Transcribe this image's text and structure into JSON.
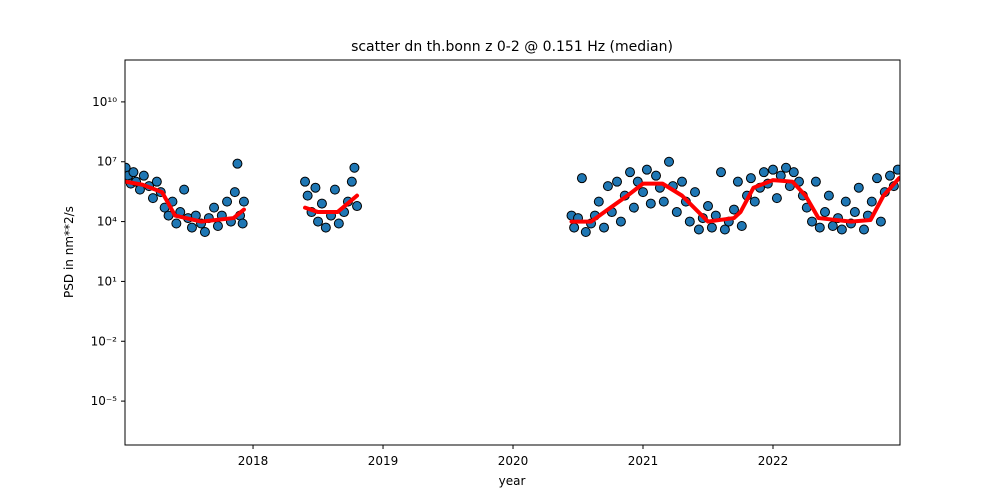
{
  "chart_data": {
    "type": "scatter",
    "title": "scatter dn th.bonn z 0-2 @ 0.151 Hz (median)",
    "xlabel": "year",
    "ylabel": "PSD in nm**2/s",
    "xlim": [
      2017.015,
      2022.977
    ],
    "xticks": [
      2018,
      2019,
      2020,
      2021,
      2022
    ],
    "ylim": [
      6.3e-08,
      1260000000000.0
    ],
    "yscale": "log",
    "yticks": [
      {
        "value": 1e-05,
        "label": "10⁻⁵"
      },
      {
        "value": 0.01,
        "label": "10⁻²"
      },
      {
        "value": 10,
        "label": "10¹"
      },
      {
        "value": 10000,
        "label": "10⁴"
      },
      {
        "value": 10000000,
        "label": "10⁷"
      },
      {
        "value": 10000000000,
        "label": "10¹⁰"
      }
    ],
    "grid": false,
    "series": [
      {
        "kind": "markers",
        "color": "#1f77b4",
        "edgecolor": "#000000",
        "x": [
          2017.02,
          2017.04,
          2017.06,
          2017.08,
          2017.1,
          2017.13,
          2017.16,
          2017.2,
          2017.23,
          2017.26,
          2017.29,
          2017.32,
          2017.35,
          2017.38,
          2017.41,
          2017.44,
          2017.47,
          2017.5,
          2017.53,
          2017.56,
          2017.6,
          2017.63,
          2017.66,
          2017.7,
          2017.73,
          2017.76,
          2017.8,
          2017.83,
          2017.86,
          2017.88,
          2017.9,
          2017.92,
          2017.93,
          2018.4,
          2018.42,
          2018.45,
          2018.48,
          2018.5,
          2018.53,
          2018.56,
          2018.6,
          2018.63,
          2018.66,
          2018.7,
          2018.73,
          2018.76,
          2018.78,
          2018.8,
          2020.45,
          2020.47,
          2020.5,
          2020.53,
          2020.56,
          2020.6,
          2020.63,
          2020.66,
          2020.7,
          2020.73,
          2020.76,
          2020.8,
          2020.83,
          2020.86,
          2020.9,
          2020.93,
          2020.96,
          2021.0,
          2021.03,
          2021.06,
          2021.1,
          2021.13,
          2021.16,
          2021.2,
          2021.23,
          2021.26,
          2021.3,
          2021.33,
          2021.36,
          2021.4,
          2021.43,
          2021.46,
          2021.5,
          2021.53,
          2021.56,
          2021.6,
          2021.63,
          2021.66,
          2021.7,
          2021.73,
          2021.76,
          2021.8,
          2021.83,
          2021.86,
          2021.9,
          2021.93,
          2021.96,
          2022.0,
          2022.03,
          2022.06,
          2022.1,
          2022.13,
          2022.16,
          2022.2,
          2022.23,
          2022.26,
          2022.3,
          2022.33,
          2022.36,
          2022.4,
          2022.43,
          2022.46,
          2022.5,
          2022.53,
          2022.56,
          2022.6,
          2022.63,
          2022.66,
          2022.7,
          2022.73,
          2022.76,
          2022.8,
          2022.83,
          2022.86,
          2022.9,
          2022.93,
          2022.96
        ],
        "values": [
          5000000.0,
          2000000.0,
          800000.0,
          3000000.0,
          1000000.0,
          400000.0,
          2000000.0,
          600000.0,
          150000.0,
          1000000.0,
          300000.0,
          50000.0,
          20000.0,
          100000.0,
          8000.0,
          30000.0,
          400000.0,
          15000.0,
          5000.0,
          20000.0,
          8000.0,
          3000.0,
          15000.0,
          50000.0,
          6000.0,
          20000.0,
          100000.0,
          10000.0,
          300000.0,
          8000000.0,
          20000.0,
          8000.0,
          100000.0,
          1000000.0,
          200000.0,
          30000.0,
          500000.0,
          10000.0,
          80000.0,
          5000.0,
          20000.0,
          400000.0,
          8000.0,
          30000.0,
          100000.0,
          1000000.0,
          5000000.0,
          60000.0,
          20000.0,
          5000.0,
          15000.0,
          1500000.0,
          3000.0,
          8000.0,
          20000.0,
          100000.0,
          5000.0,
          600000.0,
          30000.0,
          1000000.0,
          10000.0,
          200000.0,
          3000000.0,
          50000.0,
          1000000.0,
          300000.0,
          4000000.0,
          80000.0,
          2000000.0,
          500000.0,
          100000.0,
          10000000.0,
          600000.0,
          30000.0,
          1000000.0,
          100000.0,
          10000.0,
          300000.0,
          4000.0,
          15000.0,
          60000.0,
          5000.0,
          20000.0,
          3000000.0,
          4000.0,
          10000.0,
          40000.0,
          1000000.0,
          6000.0,
          200000.0,
          1500000.0,
          100000.0,
          500000.0,
          3000000.0,
          800000.0,
          4000000.0,
          150000.0,
          2000000.0,
          5000000.0,
          600000.0,
          3000000.0,
          1000000.0,
          200000.0,
          50000.0,
          10000.0,
          1000000.0,
          5000.0,
          30000.0,
          200000.0,
          6000.0,
          15000.0,
          4000.0,
          100000.0,
          8000.0,
          30000.0,
          500000.0,
          4000.0,
          20000.0,
          100000.0,
          1500000.0,
          10000.0,
          300000.0,
          2000000.0,
          600000.0,
          4000000.0
        ]
      },
      {
        "kind": "line",
        "color": "#ff0000",
        "x": [
          2017.02,
          2017.15,
          2017.3,
          2017.4,
          2017.6,
          2017.85,
          2017.93,
          2018.1,
          2018.4,
          2018.5,
          2018.65,
          2018.8,
          2019.5,
          2020.45,
          2020.6,
          2020.75,
          2020.9,
          2021.0,
          2021.15,
          2021.3,
          2021.5,
          2021.7,
          2021.75,
          2021.85,
          2022.0,
          2022.15,
          2022.25,
          2022.35,
          2022.6,
          2022.75,
          2022.85,
          2022.97
        ],
        "values": [
          1000000.0,
          700000.0,
          300000.0,
          20000.0,
          10000.0,
          15000.0,
          40000.0,
          null,
          50000.0,
          30000.0,
          30000.0,
          200000.0,
          null,
          10000.0,
          10000.0,
          50000.0,
          250000.0,
          800000.0,
          800000.0,
          200000.0,
          10000.0,
          15000.0,
          30000.0,
          500000.0,
          1200000.0,
          1000000.0,
          200000.0,
          15000.0,
          10000.0,
          12000.0,
          200000.0,
          1500000.0
        ]
      }
    ]
  }
}
